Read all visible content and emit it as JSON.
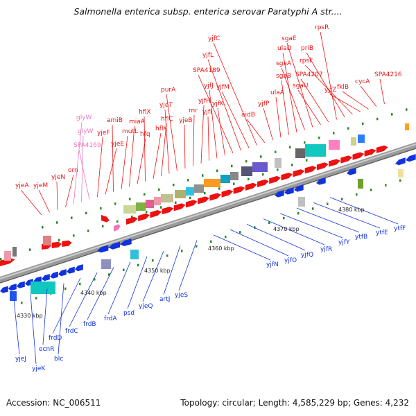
{
  "title": "Salmonella enterica subsp. enterica serovar Paratyphi A str....",
  "footer": {
    "accession": "Accession: NC_006511",
    "summary": "Topology: circular; Length: 4,585,229 bp; Genes: 4,232"
  },
  "colors": {
    "forward": "#ee1111",
    "reverse": "#1133dd",
    "rna": "#ee77bb",
    "backbone": "#888888",
    "tick": "#2a8a2a"
  },
  "ticks": [
    "4330 kbp",
    "4340 kbp",
    "4350 kbp",
    "4360 kbp",
    "4370 kbp",
    "4380 kbp"
  ],
  "top_genes": [
    "yjeA",
    "yjeM",
    "yjeN",
    "orn",
    "glyW",
    "glyW",
    "SPA4169",
    "yjeF",
    "yjeE",
    "amiB",
    "mutL",
    "miaA",
    "hfq",
    "hflX",
    "hflK",
    "hflC",
    "yjeT",
    "purA",
    "yjeB",
    "rnr",
    "yjfH",
    "yjfI",
    "yjfJ",
    "yjfK",
    "SPA4189",
    "yjfL",
    "yjfM",
    "yjfC",
    "aidB",
    "yjfP",
    "ulaA",
    "sgaB",
    "ulaD",
    "sgaA",
    "sgaE",
    "sgaU",
    "SPA4207",
    "rpsR",
    "priB",
    "rpsF",
    "yjfZ",
    "fklB",
    "cycA",
    "SPA4216"
  ],
  "bottom_genes": [
    "yjeJ",
    "yjeK",
    "ecnR",
    "blc",
    "frdD",
    "frdC",
    "frdB",
    "frdA",
    "psd",
    "yjeQ",
    "artJ",
    "yjeS",
    "yjfN",
    "yjfO",
    "yjfQ",
    "yjfR",
    "yjfY",
    "ytfB",
    "ytfE",
    "ytfF"
  ]
}
